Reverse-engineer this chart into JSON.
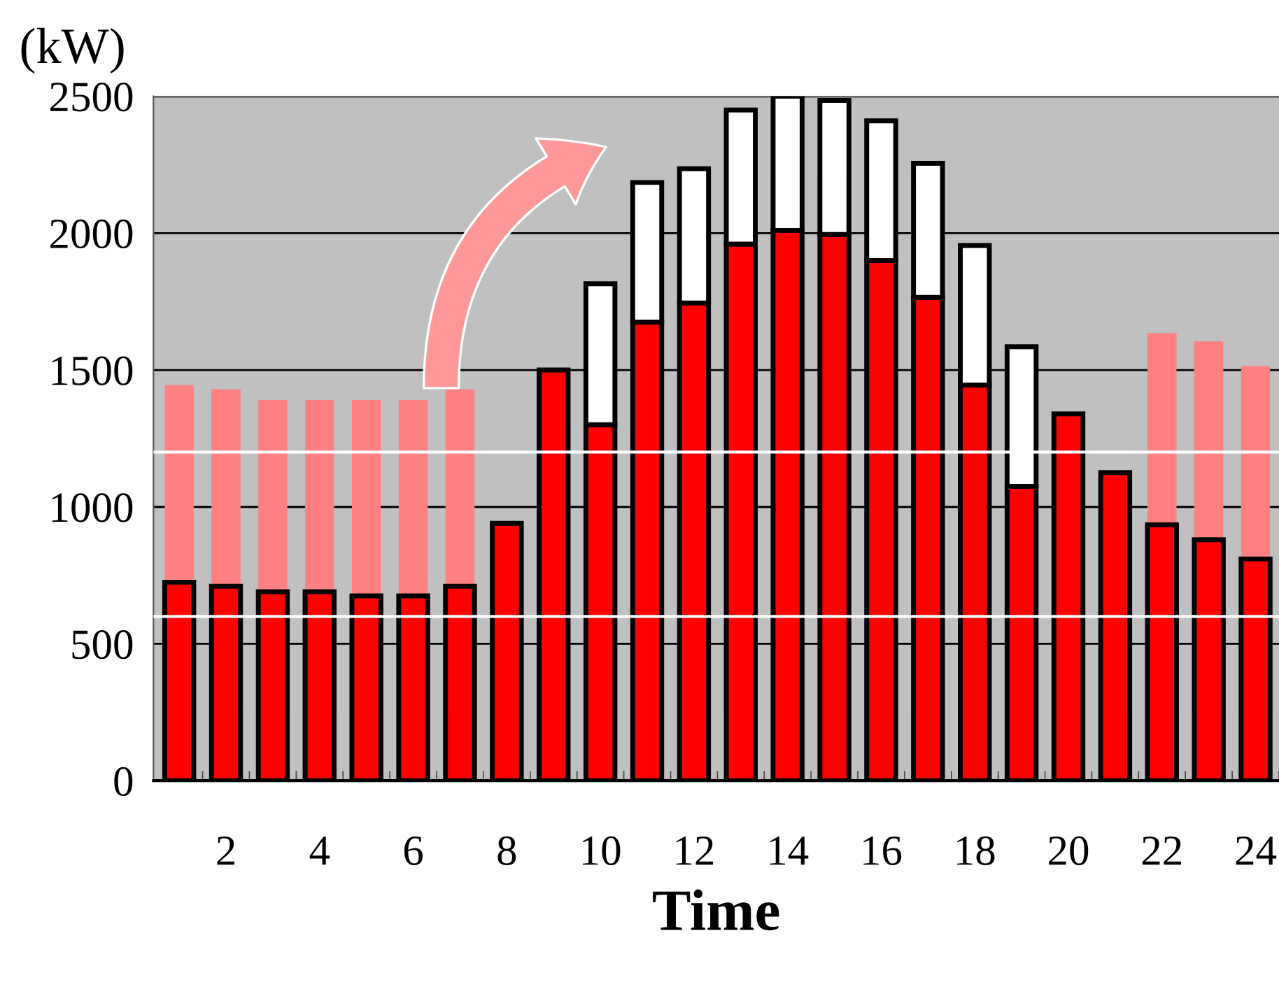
{
  "chart_data": {
    "type": "bar",
    "stacked": true,
    "ylabel": "(kW)",
    "xlabel": "Time",
    "categories": [
      null,
      "2",
      null,
      "4",
      null,
      "6",
      null,
      "8",
      null,
      "10",
      null,
      "12",
      null,
      "14",
      null,
      "16",
      null,
      "18",
      null,
      "20",
      null,
      "22",
      null,
      "24"
    ],
    "series": [
      {
        "color": "#ff0000",
        "values": [
          725,
          710,
          690,
          690,
          675,
          675,
          710,
          940,
          1500,
          1300,
          1675,
          1745,
          1960,
          2010,
          1995,
          1900,
          1765,
          1445,
          1075,
          1340,
          1125,
          935,
          880,
          810
        ]
      },
      {
        "color": "#ff8080",
        "values": [
          720,
          720,
          700,
          700,
          715,
          715,
          720,
          null,
          null,
          null,
          null,
          null,
          null,
          null,
          null,
          null,
          null,
          null,
          null,
          null,
          null,
          700,
          725,
          705
        ]
      },
      {
        "color": "#ffffff",
        "values": [
          null,
          null,
          null,
          null,
          null,
          null,
          null,
          null,
          null,
          515,
          510,
          490,
          490,
          490,
          490,
          510,
          490,
          510,
          510,
          null,
          null,
          null,
          null,
          null
        ]
      }
    ],
    "ylim": [
      0,
      2500
    ],
    "yticks": [
      0,
      500,
      1000,
      1500,
      2000,
      2500
    ],
    "grid": "y",
    "ref_lines": [
      {
        "axis": "y",
        "value": 1200,
        "color": "#ffffff"
      },
      {
        "axis": "y",
        "value": 600,
        "color": "#ffffff"
      }
    ]
  }
}
